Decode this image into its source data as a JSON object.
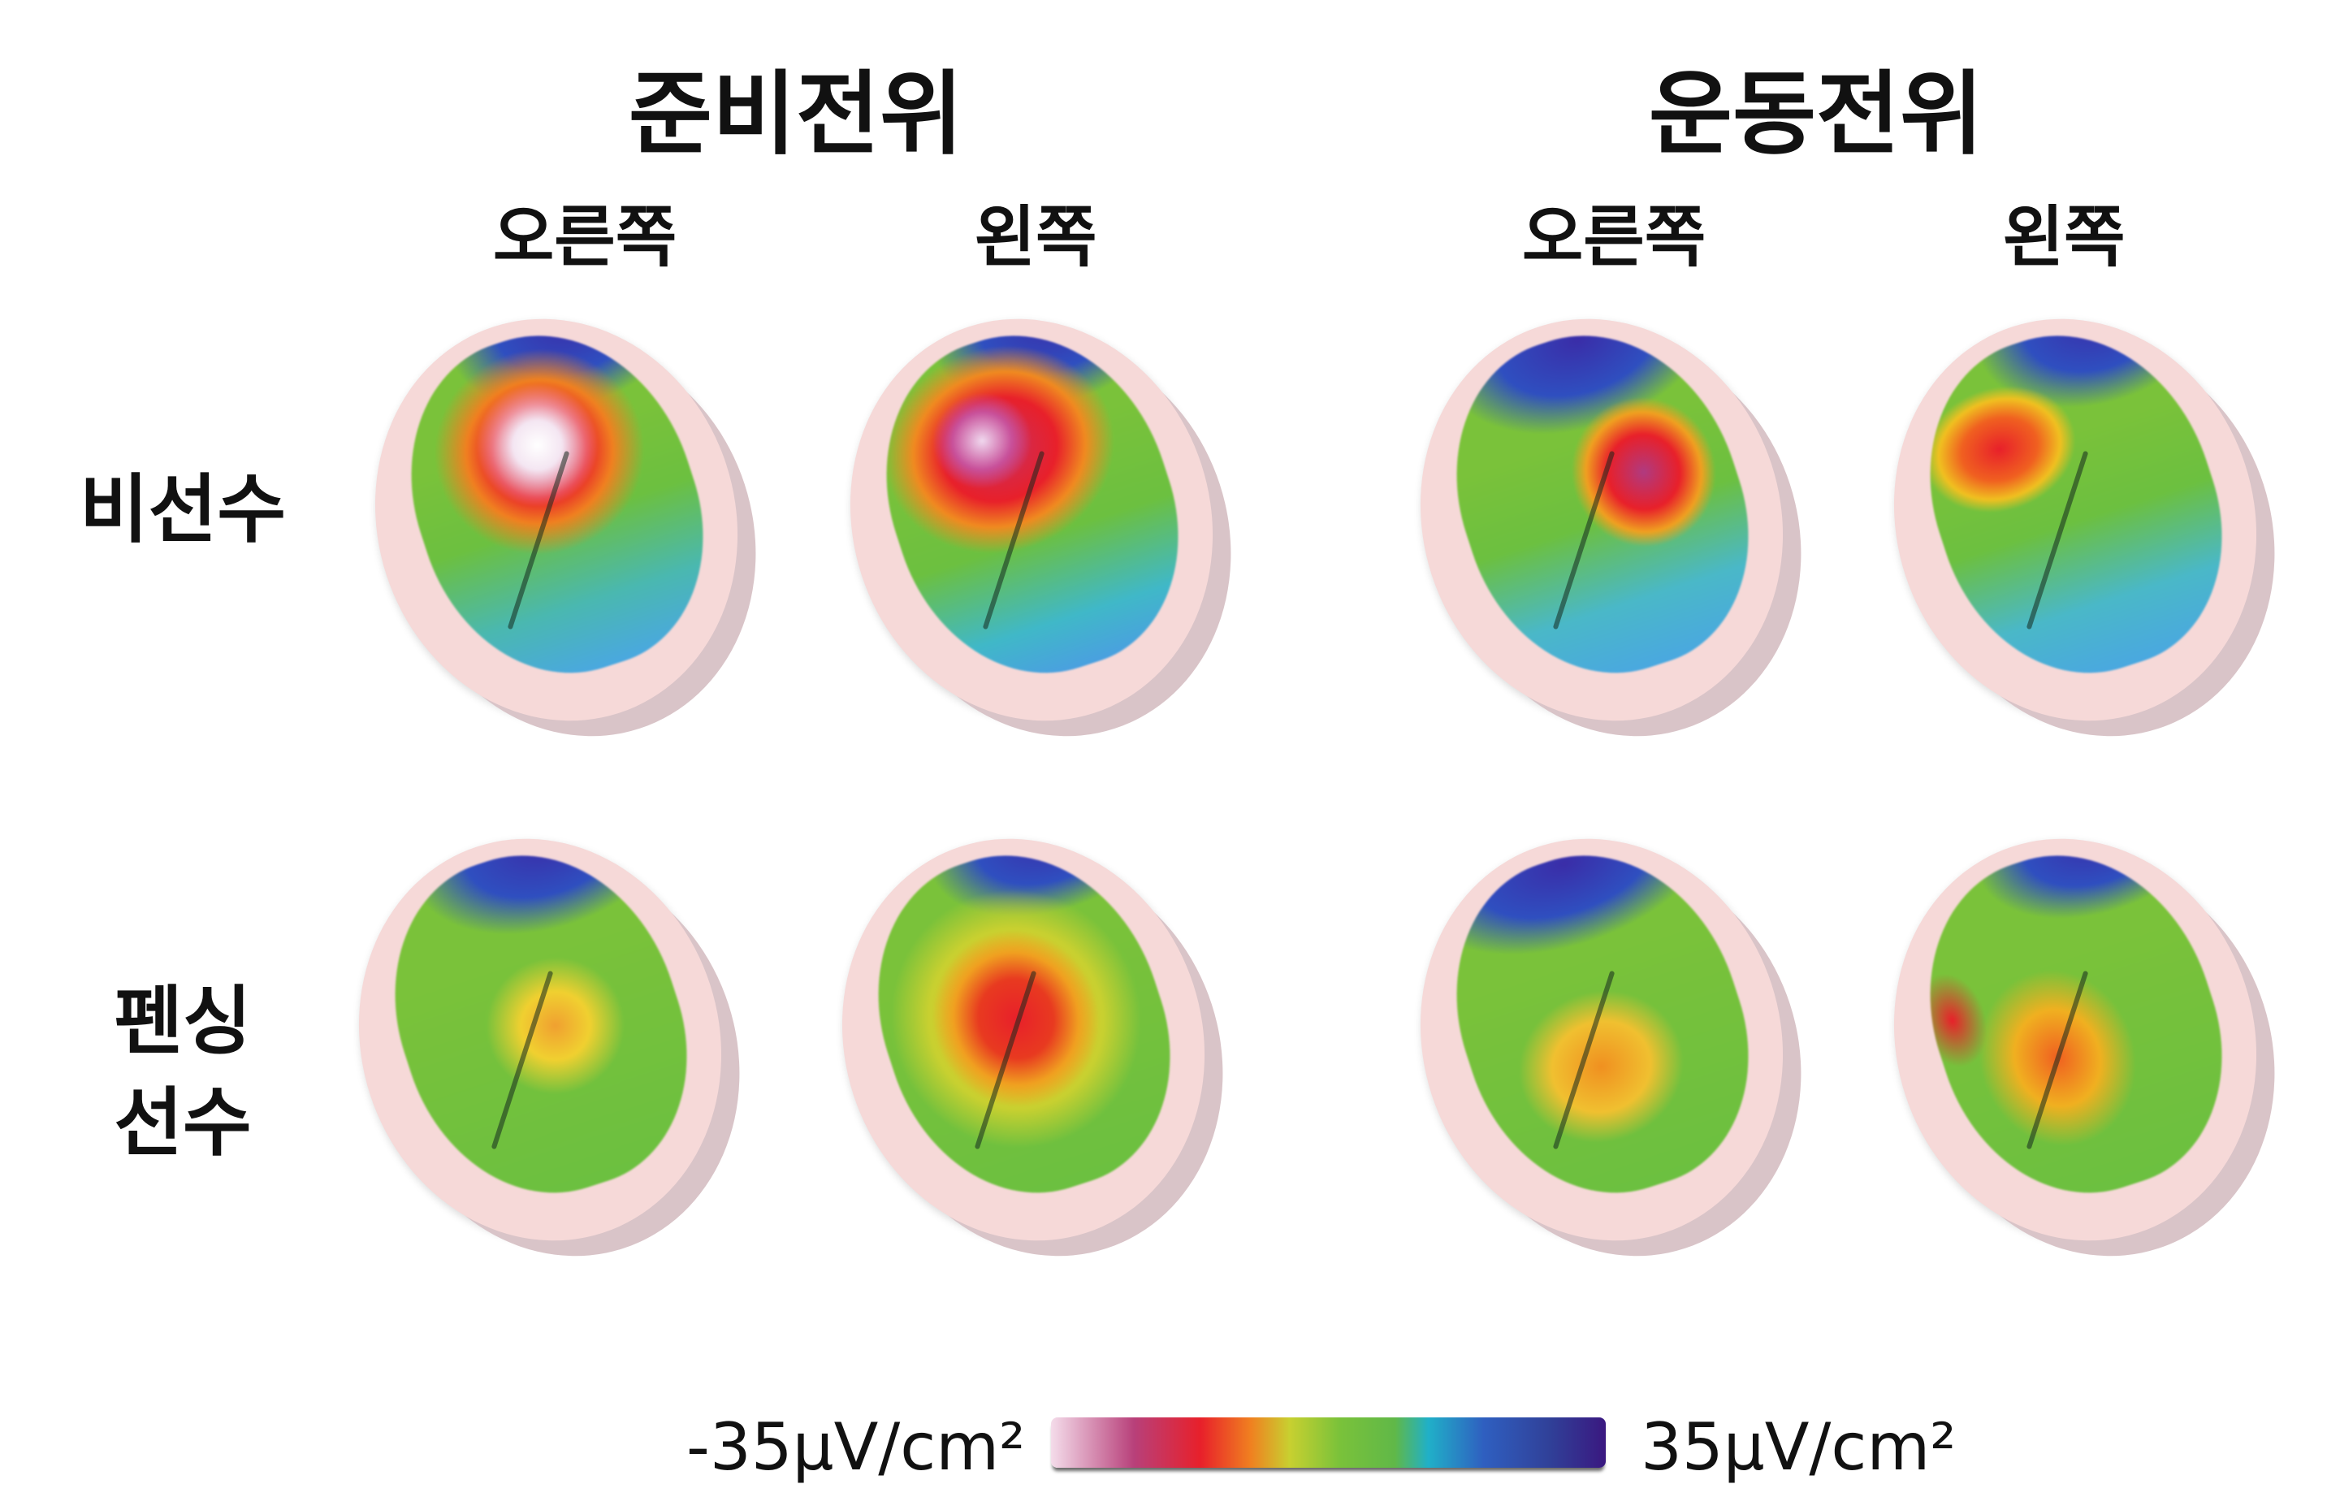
{
  "headers": {
    "group1": {
      "title": "준비전위",
      "left_label": "오른쪽",
      "right_label": "왼쪽"
    },
    "group2": {
      "title": "운동전위",
      "left_label": "오른쪽",
      "right_label": "왼쪽"
    }
  },
  "rows": [
    {
      "label": "비선수"
    },
    {
      "label_line1": "펜싱",
      "label_line2": "선수"
    }
  ],
  "colorbar": {
    "min_label": "-35μV/cm²",
    "max_label": "35μV/cm²",
    "colors": [
      "#f4dcea",
      "#b8407a",
      "#e8202a",
      "#f08020",
      "#c8d030",
      "#7ac23a",
      "#20b0c8",
      "#2f5fc0",
      "#3a1880"
    ]
  }
}
